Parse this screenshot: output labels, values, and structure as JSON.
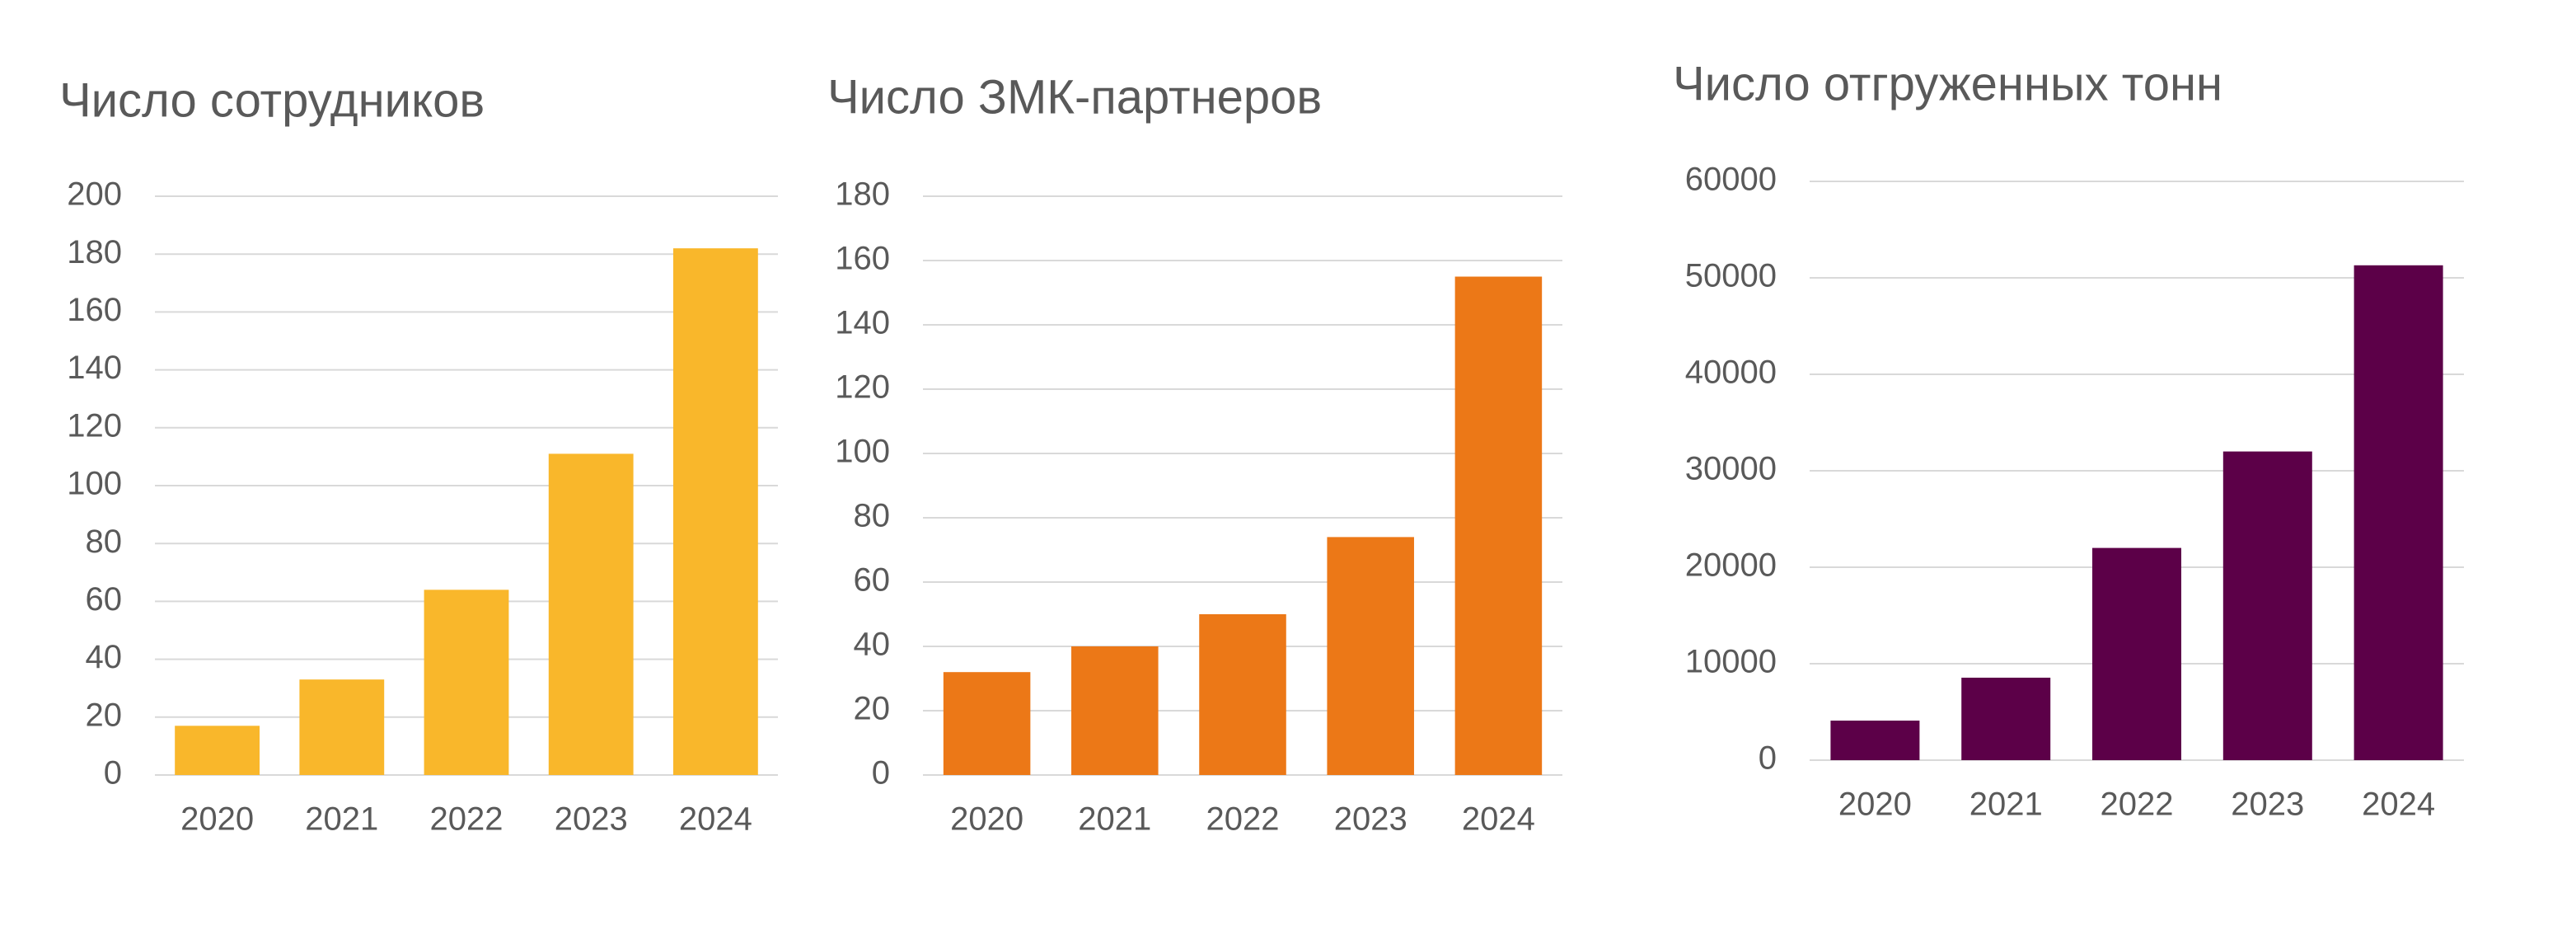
{
  "chart_data": [
    {
      "type": "bar",
      "title": "Число сотрудников",
      "categories": [
        "2020",
        "2021",
        "2022",
        "2023",
        "2024"
      ],
      "values": [
        17,
        33,
        64,
        111,
        182
      ],
      "color": "#F9B72B",
      "ylim": [
        0,
        200
      ],
      "yticks": [
        0,
        20,
        40,
        60,
        80,
        100,
        120,
        140,
        160,
        180,
        200
      ],
      "grid": true
    },
    {
      "type": "bar",
      "title": "Число ЗМК-партнеров",
      "categories": [
        "2020",
        "2021",
        "2022",
        "2023",
        "2024"
      ],
      "values": [
        32,
        40,
        50,
        74,
        155
      ],
      "color": "#EC7817",
      "ylim": [
        0,
        180
      ],
      "yticks": [
        0,
        20,
        40,
        60,
        80,
        100,
        120,
        140,
        160,
        180
      ],
      "grid": true
    },
    {
      "type": "bar",
      "title": "Число отгруженных тонн",
      "categories": [
        "2020",
        "2021",
        "2022",
        "2023",
        "2024"
      ],
      "values": [
        4100,
        8550,
        22000,
        32000,
        51300
      ],
      "color": "#5C0048",
      "ylim": [
        0,
        60000
      ],
      "yticks": [
        0,
        10000,
        20000,
        30000,
        40000,
        50000,
        60000
      ],
      "grid": true
    }
  ]
}
